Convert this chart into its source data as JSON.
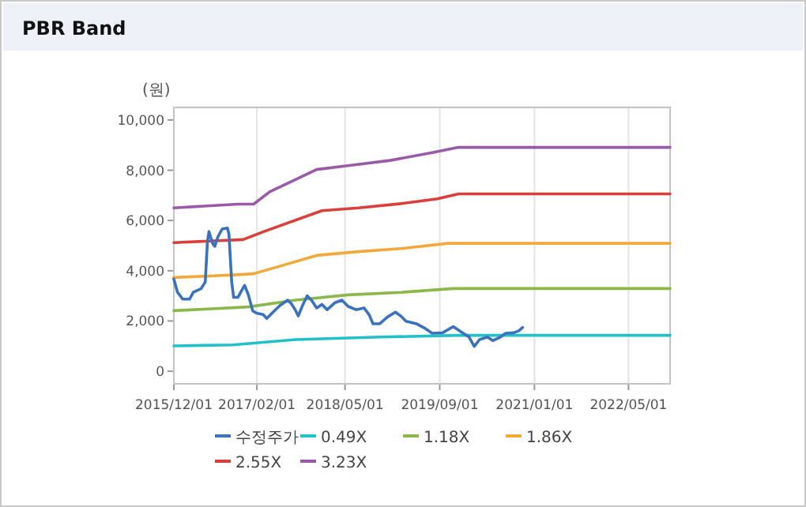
{
  "chart_data": {
    "type": "line",
    "title": "PBR Band",
    "ylabel": "(원)",
    "xlim": [
      "2015-12-01",
      "2022-12-01"
    ],
    "xticks": [
      {
        "value": "2015-12-01",
        "label": "2015/12/01"
      },
      {
        "value": "2017-02-01",
        "label": "2017/02/01"
      },
      {
        "value": "2018-05-01",
        "label": "2018/05/01"
      },
      {
        "value": "2019-09-01",
        "label": "2019/09/01"
      },
      {
        "value": "2021-01-01",
        "label": "2021/01/01"
      },
      {
        "value": "2022-05-01",
        "label": "2022/05/01"
      }
    ],
    "ylim": [
      -500,
      10500
    ],
    "yticks": [
      {
        "value": 0,
        "label": "0"
      },
      {
        "value": 2000,
        "label": "2,000"
      },
      {
        "value": 4000,
        "label": "4,000"
      },
      {
        "value": 6000,
        "label": "6,000"
      },
      {
        "value": 8000,
        "label": "8,000"
      },
      {
        "value": 10000,
        "label": "10,000"
      }
    ],
    "grid": "x",
    "legend": "bottom",
    "marker": "none",
    "line_style": "solid",
    "series": [
      {
        "name": "수정주가",
        "color": "#3a72c0",
        "x": [
          "2015-12-01",
          "2015-12-20",
          "2016-01-16",
          "2016-02-20",
          "2016-03-10",
          "2016-04-20",
          "2016-05-11",
          "2016-05-22",
          "2016-05-30",
          "2016-06-07",
          "2016-06-18",
          "2016-06-29",
          "2016-07-15",
          "2016-08-06",
          "2016-09-02",
          "2016-09-10",
          "2016-09-24",
          "2016-10-04",
          "2016-10-26",
          "2016-11-17",
          "2016-11-30",
          "2016-12-19",
          "2017-01-10",
          "2017-01-29",
          "2017-03-05",
          "2017-03-24",
          "2017-04-20",
          "2017-05-31",
          "2017-07-10",
          "2017-07-29",
          "2017-08-20",
          "2017-09-02",
          "2017-09-24",
          "2017-10-18",
          "2017-11-09",
          "2017-12-06",
          "2018-01-02",
          "2018-01-29",
          "2018-03-11",
          "2018-04-15",
          "2018-05-17",
          "2018-06-27",
          "2018-08-07",
          "2018-09-03",
          "2018-09-22",
          "2018-10-27",
          "2018-12-06",
          "2019-01-16",
          "2019-02-12",
          "2019-03-11",
          "2019-05-04",
          "2019-06-14",
          "2019-07-24",
          "2019-09-16",
          "2019-11-10",
          "2019-12-20",
          "2020-01-30",
          "2020-02-26",
          "2020-03-24",
          "2020-05-04",
          "2020-05-31",
          "2020-07-10",
          "2020-08-06",
          "2020-09-16",
          "2020-10-13",
          "2020-11-01"
        ],
        "values": [
          3670,
          3140,
          2870,
          2870,
          3140,
          3290,
          3560,
          5140,
          5560,
          5350,
          5090,
          4970,
          5350,
          5660,
          5700,
          5450,
          3560,
          2940,
          2940,
          3250,
          3420,
          3040,
          2410,
          2310,
          2260,
          2100,
          2310,
          2620,
          2830,
          2680,
          2410,
          2200,
          2620,
          3000,
          2830,
          2520,
          2660,
          2450,
          2730,
          2830,
          2580,
          2450,
          2520,
          2240,
          1890,
          1890,
          2160,
          2350,
          2200,
          1990,
          1890,
          1720,
          1510,
          1530,
          1780,
          1570,
          1360,
          990,
          1260,
          1360,
          1220,
          1360,
          1510,
          1530,
          1610,
          1740
        ]
      },
      {
        "name": "0.49X",
        "color": "#22c0c8",
        "x": [
          "2015-12-01",
          "2016-09-29",
          "2017-08-20",
          "2018-10-27",
          "2019-12-07",
          "2022-12-01"
        ],
        "values": [
          1010,
          1050,
          1260,
          1360,
          1430,
          1430
        ]
      },
      {
        "name": "1.18X",
        "color": "#8ab84a",
        "x": [
          "2015-12-01",
          "2016-12-19",
          "2017-08-20",
          "2018-05-17",
          "2019-02-12",
          "2019-11-10",
          "2022-12-01"
        ],
        "values": [
          2410,
          2560,
          2830,
          3040,
          3140,
          3290,
          3290
        ]
      },
      {
        "name": "1.86X",
        "color": "#f2a93b",
        "x": [
          "2015-12-01",
          "2016-10-26",
          "2017-01-15",
          "2017-12-06",
          "2018-07-10",
          "2019-02-12",
          "2019-10-14",
          "2022-12-01"
        ],
        "values": [
          3730,
          3840,
          3880,
          4610,
          4760,
          4880,
          5090,
          5090
        ]
      },
      {
        "name": "2.55X",
        "color": "#d9403a",
        "x": [
          "2015-12-01",
          "2016-11-22",
          "2017-03-10",
          "2018-01-02",
          "2018-07-10",
          "2019-02-12",
          "2019-08-20",
          "2019-12-07",
          "2022-12-01"
        ],
        "values": [
          5120,
          5240,
          5560,
          6390,
          6500,
          6670,
          6860,
          7060,
          7060
        ]
      },
      {
        "name": "3.23X",
        "color": "#9b5aa8",
        "x": [
          "2015-12-01",
          "2016-10-26",
          "2017-01-15",
          "2017-04-06",
          "2017-12-06",
          "2018-05-17",
          "2018-12-20",
          "2019-07-24",
          "2019-12-07",
          "2022-12-01"
        ],
        "values": [
          6500,
          6650,
          6650,
          7130,
          8030,
          8180,
          8390,
          8700,
          8910,
          8910
        ]
      }
    ]
  }
}
